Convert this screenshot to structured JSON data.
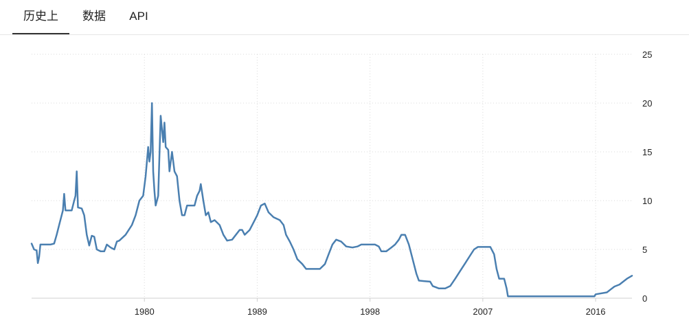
{
  "tabs": [
    {
      "label": "历史上",
      "active": true
    },
    {
      "label": "数据",
      "active": false
    },
    {
      "label": "API",
      "active": false
    }
  ],
  "chart_data": {
    "type": "line",
    "title": "",
    "xlabel": "",
    "ylabel": "",
    "xlim": [
      1971,
      2018.9
    ],
    "ylim": [
      0,
      25
    ],
    "x_ticks": [
      1980,
      1989,
      1998,
      2007,
      2016
    ],
    "y_ticks": [
      0,
      5,
      10,
      15,
      20,
      25
    ],
    "grid": true,
    "legend": "none",
    "line_color": "#4a7fb0",
    "series": [
      {
        "points": [
          [
            1971.0,
            5.6
          ],
          [
            1971.2,
            5.0
          ],
          [
            1971.4,
            4.9
          ],
          [
            1971.5,
            3.6
          ],
          [
            1971.6,
            4.2
          ],
          [
            1971.7,
            5.5
          ],
          [
            1972.0,
            5.5
          ],
          [
            1972.5,
            5.5
          ],
          [
            1972.8,
            5.6
          ],
          [
            1973.0,
            6.5
          ],
          [
            1973.2,
            7.5
          ],
          [
            1973.5,
            9.0
          ],
          [
            1973.6,
            10.7
          ],
          [
            1973.7,
            9.0
          ],
          [
            1974.0,
            9.0
          ],
          [
            1974.2,
            9.0
          ],
          [
            1974.4,
            10.0
          ],
          [
            1974.5,
            10.5
          ],
          [
            1974.6,
            13.0
          ],
          [
            1974.7,
            9.3
          ],
          [
            1975.0,
            9.2
          ],
          [
            1975.2,
            8.5
          ],
          [
            1975.4,
            6.5
          ],
          [
            1975.6,
            5.4
          ],
          [
            1975.8,
            6.4
          ],
          [
            1976.0,
            6.3
          ],
          [
            1976.2,
            5.0
          ],
          [
            1976.5,
            4.8
          ],
          [
            1976.8,
            4.8
          ],
          [
            1977.0,
            5.5
          ],
          [
            1977.3,
            5.2
          ],
          [
            1977.6,
            5.0
          ],
          [
            1977.8,
            5.8
          ],
          [
            1978.0,
            5.9
          ],
          [
            1978.5,
            6.5
          ],
          [
            1979.0,
            7.5
          ],
          [
            1979.3,
            8.5
          ],
          [
            1979.6,
            10.0
          ],
          [
            1979.9,
            10.5
          ],
          [
            1980.1,
            12.5
          ],
          [
            1980.3,
            15.5
          ],
          [
            1980.4,
            14.0
          ],
          [
            1980.5,
            15.0
          ],
          [
            1980.6,
            20.0
          ],
          [
            1980.7,
            13.0
          ],
          [
            1980.8,
            11.0
          ],
          [
            1980.9,
            9.5
          ],
          [
            1981.1,
            10.5
          ],
          [
            1981.3,
            18.7
          ],
          [
            1981.5,
            16.0
          ],
          [
            1981.6,
            18.0
          ],
          [
            1981.7,
            15.5
          ],
          [
            1981.9,
            15.2
          ],
          [
            1982.0,
            13.0
          ],
          [
            1982.2,
            15.0
          ],
          [
            1982.4,
            13.0
          ],
          [
            1982.6,
            12.5
          ],
          [
            1982.8,
            10.0
          ],
          [
            1983.0,
            8.5
          ],
          [
            1983.2,
            8.5
          ],
          [
            1983.4,
            9.5
          ],
          [
            1983.7,
            9.5
          ],
          [
            1984.0,
            9.5
          ],
          [
            1984.2,
            10.5
          ],
          [
            1984.4,
            11.0
          ],
          [
            1984.5,
            11.7
          ],
          [
            1984.7,
            10.0
          ],
          [
            1984.9,
            8.5
          ],
          [
            1985.1,
            8.8
          ],
          [
            1985.3,
            7.8
          ],
          [
            1985.6,
            8.0
          ],
          [
            1986.0,
            7.5
          ],
          [
            1986.3,
            6.5
          ],
          [
            1986.6,
            5.9
          ],
          [
            1987.0,
            6.0
          ],
          [
            1987.3,
            6.5
          ],
          [
            1987.6,
            7.0
          ],
          [
            1987.8,
            7.0
          ],
          [
            1988.0,
            6.5
          ],
          [
            1988.4,
            7.0
          ],
          [
            1988.8,
            8.0
          ],
          [
            1989.0,
            8.5
          ],
          [
            1989.3,
            9.5
          ],
          [
            1989.6,
            9.7
          ],
          [
            1989.9,
            8.8
          ],
          [
            1990.3,
            8.3
          ],
          [
            1990.8,
            8.0
          ],
          [
            1991.1,
            7.5
          ],
          [
            1991.3,
            6.5
          ],
          [
            1991.6,
            5.8
          ],
          [
            1991.9,
            5.0
          ],
          [
            1992.2,
            4.0
          ],
          [
            1992.6,
            3.5
          ],
          [
            1992.9,
            3.0
          ],
          [
            1993.5,
            3.0
          ],
          [
            1994.0,
            3.0
          ],
          [
            1994.4,
            3.5
          ],
          [
            1994.7,
            4.5
          ],
          [
            1995.0,
            5.5
          ],
          [
            1995.3,
            6.0
          ],
          [
            1995.7,
            5.8
          ],
          [
            1996.1,
            5.3
          ],
          [
            1996.6,
            5.2
          ],
          [
            1997.0,
            5.3
          ],
          [
            1997.3,
            5.5
          ],
          [
            1997.8,
            5.5
          ],
          [
            1998.4,
            5.5
          ],
          [
            1998.7,
            5.3
          ],
          [
            1998.9,
            4.8
          ],
          [
            1999.3,
            4.8
          ],
          [
            1999.7,
            5.2
          ],
          [
            2000.0,
            5.5
          ],
          [
            2000.3,
            6.0
          ],
          [
            2000.5,
            6.5
          ],
          [
            2000.8,
            6.5
          ],
          [
            2001.1,
            5.5
          ],
          [
            2001.4,
            4.0
          ],
          [
            2001.7,
            2.5
          ],
          [
            2001.9,
            1.8
          ],
          [
            2002.3,
            1.75
          ],
          [
            2002.8,
            1.7
          ],
          [
            2003.0,
            1.25
          ],
          [
            2003.5,
            1.0
          ],
          [
            2004.0,
            1.0
          ],
          [
            2004.4,
            1.25
          ],
          [
            2004.8,
            2.0
          ],
          [
            2005.2,
            2.8
          ],
          [
            2005.6,
            3.6
          ],
          [
            2006.0,
            4.4
          ],
          [
            2006.3,
            5.0
          ],
          [
            2006.6,
            5.25
          ],
          [
            2007.2,
            5.25
          ],
          [
            2007.6,
            5.25
          ],
          [
            2007.9,
            4.5
          ],
          [
            2008.1,
            3.0
          ],
          [
            2008.3,
            2.0
          ],
          [
            2008.7,
            2.0
          ],
          [
            2008.9,
            1.0
          ],
          [
            2009.0,
            0.2
          ],
          [
            2010.0,
            0.2
          ],
          [
            2012.0,
            0.2
          ],
          [
            2014.0,
            0.2
          ],
          [
            2015.9,
            0.2
          ],
          [
            2016.0,
            0.4
          ],
          [
            2016.9,
            0.6
          ],
          [
            2017.2,
            0.9
          ],
          [
            2017.5,
            1.2
          ],
          [
            2017.9,
            1.4
          ],
          [
            2018.2,
            1.7
          ],
          [
            2018.5,
            2.0
          ],
          [
            2018.9,
            2.3
          ]
        ]
      }
    ]
  }
}
